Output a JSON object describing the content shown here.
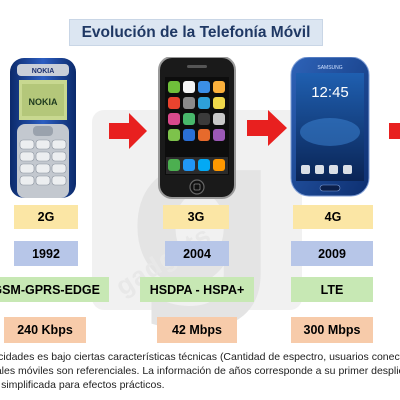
{
  "title": "Evolución de la Telefonía Móvil",
  "watermark": {
    "letter": "g",
    "text": "gadgets"
  },
  "phones": [
    {
      "brand": "NOKIA",
      "screen_text": "NOKIA",
      "generation": "2G",
      "year": "1992",
      "technology": "GSM-GPRS-EDGE",
      "speed": "240 Kbps"
    },
    {
      "brand": "iPhone",
      "generation": "3G",
      "year": "2004",
      "technology": "HSDPA - HSPA+",
      "speed": "42 Mbps"
    },
    {
      "brand": "SAMSUNG",
      "screen_time": "12:45",
      "generation": "4G",
      "year": "2009",
      "technology": "LTE",
      "speed": "300 Mbps"
    }
  ],
  "colors": {
    "title_bg": "#dce6f2",
    "title_text": "#1f3864",
    "arrow": "#e8201f",
    "gen_bg": "#fbe6a5",
    "year_bg": "#b7c6e8",
    "tech_bg": "#c7e8b4",
    "speed_bg": "#f7cbaa"
  },
  "note": {
    "line1": "locidades es bajo ciertas características técnicas (Cantidad de espectro, usuarios conectado",
    "line2": "nales móviles son referenciales. La información de años corresponde a su primer despliegu",
    "line3": "al simplificada para efectos prácticos."
  }
}
